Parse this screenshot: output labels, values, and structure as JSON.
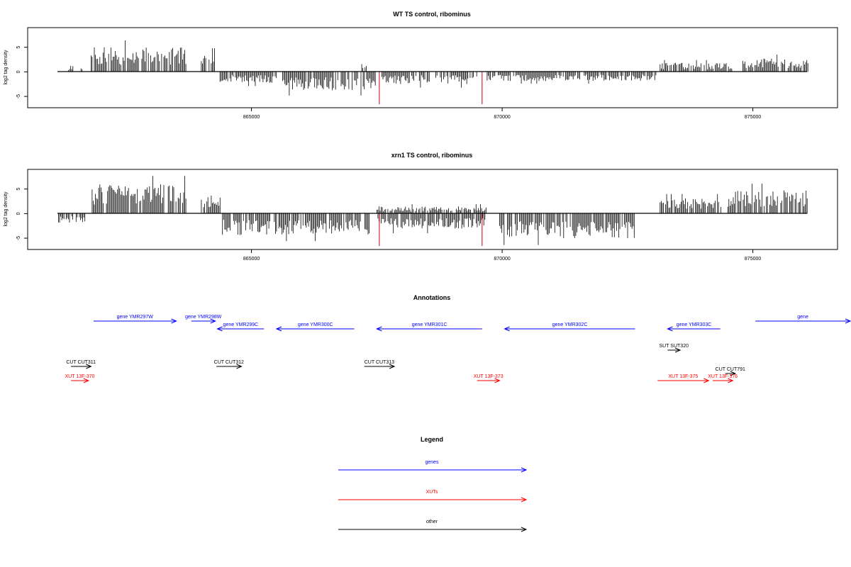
{
  "colors": {
    "gene": "#0000ff",
    "xut": "#ff0000",
    "other": "#000000",
    "cut_marker": "#cc0000"
  },
  "axis": {
    "ylabel": "log2 tag density",
    "x_ticks": [
      865000,
      870000,
      875000
    ],
    "x_tick_labels": [
      "865000",
      "870000",
      "875000"
    ],
    "y_ticks": [
      -5,
      0,
      5
    ],
    "y_tick_labels": [
      "-5",
      "0",
      "5"
    ]
  },
  "chart_data": [
    {
      "type": "bar",
      "title": "WT TS control, ribominus",
      "ylabel": "log2 tag density",
      "xlim": [
        861000,
        876500
      ],
      "ylim": [
        -7.3,
        9
      ],
      "grid": false,
      "red_markers": [
        {
          "x": 867550,
          "value": -6.6
        },
        {
          "x": 869600,
          "value": -6.6
        }
      ],
      "segments": [
        {
          "from": 861350,
          "to": 861450,
          "value": 1.0
        },
        {
          "from": 861600,
          "to": 861650,
          "value": 1.2
        },
        {
          "from": 861800,
          "to": 863700,
          "value": 4.0
        },
        {
          "from": 864000,
          "to": 864300,
          "value": 3.0
        },
        {
          "from": 864350,
          "to": 865500,
          "value": -1.8
        },
        {
          "from": 865600,
          "to": 867500,
          "value": -3.0
        },
        {
          "from": 867200,
          "to": 867300,
          "value": 1.5
        },
        {
          "from": 867600,
          "to": 869500,
          "value": -2.0
        },
        {
          "from": 869700,
          "to": 873100,
          "value": -1.5
        },
        {
          "from": 873150,
          "to": 874600,
          "value": 1.5
        },
        {
          "from": 874800,
          "to": 876100,
          "value": 2.2
        }
      ]
    },
    {
      "type": "bar",
      "title": "xrn1 TS control, ribominus",
      "ylabel": "log2 tag density",
      "xlim": [
        861000,
        876500
      ],
      "ylim": [
        -7.3,
        9
      ],
      "grid": false,
      "red_markers": [
        {
          "x": 867550,
          "value": -6.6
        },
        {
          "x": 869600,
          "value": -6.6
        }
      ],
      "segments": [
        {
          "from": 861150,
          "to": 861700,
          "value": -1.5
        },
        {
          "from": 861800,
          "to": 863700,
          "value": 4.8
        },
        {
          "from": 864000,
          "to": 864400,
          "value": 3.0
        },
        {
          "from": 864400,
          "to": 867400,
          "value": -3.5
        },
        {
          "from": 867500,
          "to": 869700,
          "value": -2.5
        },
        {
          "from": 867500,
          "to": 869700,
          "value": 1.2
        },
        {
          "from": 869950,
          "to": 872650,
          "value": -4.0
        },
        {
          "from": 873150,
          "to": 874400,
          "value": 2.5
        },
        {
          "from": 874500,
          "to": 876100,
          "value": 3.8
        }
      ]
    }
  ],
  "annotations": {
    "title": "Annotations",
    "features": [
      {
        "label": "gene YMR297W",
        "type": "gene",
        "strand": "+",
        "start": 861850,
        "end": 863500,
        "row": 0
      },
      {
        "label": "gene YMR298W",
        "type": "gene",
        "strand": "+",
        "start": 863800,
        "end": 864280,
        "row": 0
      },
      {
        "label": "gene YMR299C",
        "type": "gene",
        "strand": "-",
        "start": 864320,
        "end": 865250,
        "row": 1
      },
      {
        "label": "gene YMR300C",
        "type": "gene",
        "strand": "-",
        "start": 865500,
        "end": 867050,
        "row": 1
      },
      {
        "label": "gene YMR301C",
        "type": "gene",
        "strand": "-",
        "start": 867500,
        "end": 869600,
        "row": 1
      },
      {
        "label": "gene YMR302C",
        "type": "gene",
        "strand": "-",
        "start": 870050,
        "end": 872650,
        "row": 1
      },
      {
        "label": "gene YMR303C",
        "type": "gene",
        "strand": "-",
        "start": 873300,
        "end": 874350,
        "row": 1
      },
      {
        "label": "gene",
        "type": "gene",
        "strand": "+",
        "start": 875050,
        "end": 877000,
        "row": 0
      },
      {
        "label": "SUT SUT320",
        "type": "other",
        "strand": "+",
        "start": 873300,
        "end": 873550,
        "row": 2
      },
      {
        "label": "CUT CUT311",
        "type": "other",
        "strand": "+",
        "start": 861400,
        "end": 861800,
        "row": 3
      },
      {
        "label": "CUT CUT312",
        "type": "other",
        "strand": "+",
        "start": 864300,
        "end": 864800,
        "row": 3
      },
      {
        "label": "CUT CUT313",
        "type": "other",
        "strand": "+",
        "start": 867250,
        "end": 867850,
        "row": 3
      },
      {
        "label": "CUT CUT791",
        "type": "other",
        "strand": "+",
        "start": 874450,
        "end": 874650,
        "row": 4
      },
      {
        "label": "XUT 13F-370",
        "type": "xut",
        "strand": "+",
        "start": 861400,
        "end": 861750,
        "row": 5
      },
      {
        "label": "XUT 13F-373",
        "type": "xut",
        "strand": "+",
        "start": 869500,
        "end": 869950,
        "row": 5
      },
      {
        "label": "XUT 13F-375",
        "type": "xut",
        "strand": "+",
        "start": 873100,
        "end": 874120,
        "row": 5
      },
      {
        "label": "XUT 13F-376",
        "type": "xut",
        "strand": "+",
        "start": 874200,
        "end": 874600,
        "row": 5
      }
    ]
  },
  "legend": {
    "title": "Legend",
    "entries": [
      {
        "label": "genes",
        "type": "gene"
      },
      {
        "label": "XUTs",
        "type": "xut"
      },
      {
        "label": "other",
        "type": "other"
      }
    ]
  }
}
